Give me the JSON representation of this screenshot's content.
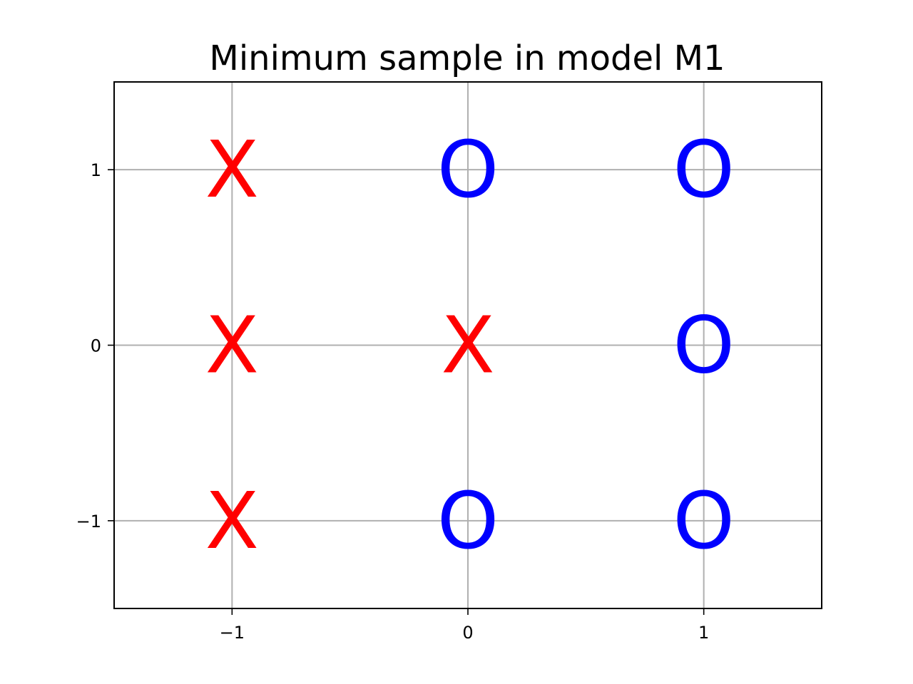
{
  "chart_data": {
    "type": "scatter",
    "title": "Minimum sample in model M1",
    "xlabel": "",
    "ylabel": "",
    "xlim": [
      -1.5,
      1.5
    ],
    "ylim": [
      -1.5,
      1.5
    ],
    "xticks": [
      -1,
      0,
      1
    ],
    "yticks": [
      -1,
      0,
      1
    ],
    "xtick_labels": [
      "−1",
      "0",
      "1"
    ],
    "ytick_labels": [
      "−1",
      "0",
      "1"
    ],
    "grid": true,
    "points": [
      {
        "x": -1,
        "y": 1,
        "label": "X",
        "color": "#ff0000"
      },
      {
        "x": 0,
        "y": 1,
        "label": "O",
        "color": "#0000ff"
      },
      {
        "x": 1,
        "y": 1,
        "label": "O",
        "color": "#0000ff"
      },
      {
        "x": -1,
        "y": 0,
        "label": "X",
        "color": "#ff0000"
      },
      {
        "x": 0,
        "y": 0,
        "label": "X",
        "color": "#ff0000"
      },
      {
        "x": 1,
        "y": 0,
        "label": "O",
        "color": "#0000ff"
      },
      {
        "x": -1,
        "y": -1,
        "label": "X",
        "color": "#ff0000"
      },
      {
        "x": 0,
        "y": -1,
        "label": "O",
        "color": "#0000ff"
      },
      {
        "x": 1,
        "y": -1,
        "label": "O",
        "color": "#0000ff"
      }
    ]
  }
}
